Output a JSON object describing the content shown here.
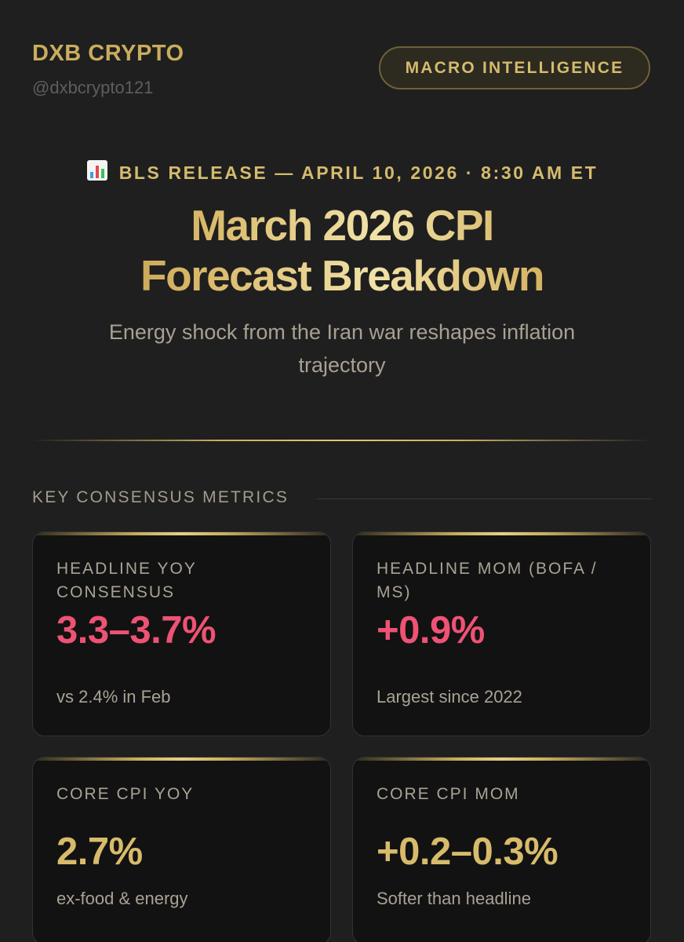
{
  "header": {
    "brand_name": "DXB CRYPTO",
    "handle": "@dxbcrypto121",
    "badge": "MACRO INTELLIGENCE"
  },
  "hero": {
    "icon": "bar-chart-icon",
    "release_line": "BLS RELEASE — APRIL 10, 2026 · 8:30 AM ET",
    "title_line1": "March 2026 CPI",
    "title_line2": "Forecast Breakdown",
    "subtitle": "Energy shock from the Iran war reshapes inflation trajectory"
  },
  "section": {
    "heading": "KEY CONSENSUS METRICS"
  },
  "metrics": [
    {
      "label": "HEADLINE YOY CONSENSUS",
      "value": "3.3–3.7%",
      "note": "vs 2.4% in Feb",
      "accent": "#ee5274"
    },
    {
      "label": "HEADLINE MOM (BOFA / MS)",
      "value": "+0.9%",
      "note": "Largest since 2022",
      "accent": "#ee5274"
    },
    {
      "label": "CORE CPI YOY",
      "value": "2.7%",
      "note": "ex-food & energy",
      "accent": "#d7bb6b"
    },
    {
      "label": "CORE CPI MOM",
      "value": "+0.2–0.3%",
      "note": "Softer than headline",
      "accent": "#d7bb6b"
    }
  ],
  "colors": {
    "gold": "#c9ad5e",
    "red": "#ee5274",
    "background": "#1f1f1f",
    "card": "#121212"
  }
}
